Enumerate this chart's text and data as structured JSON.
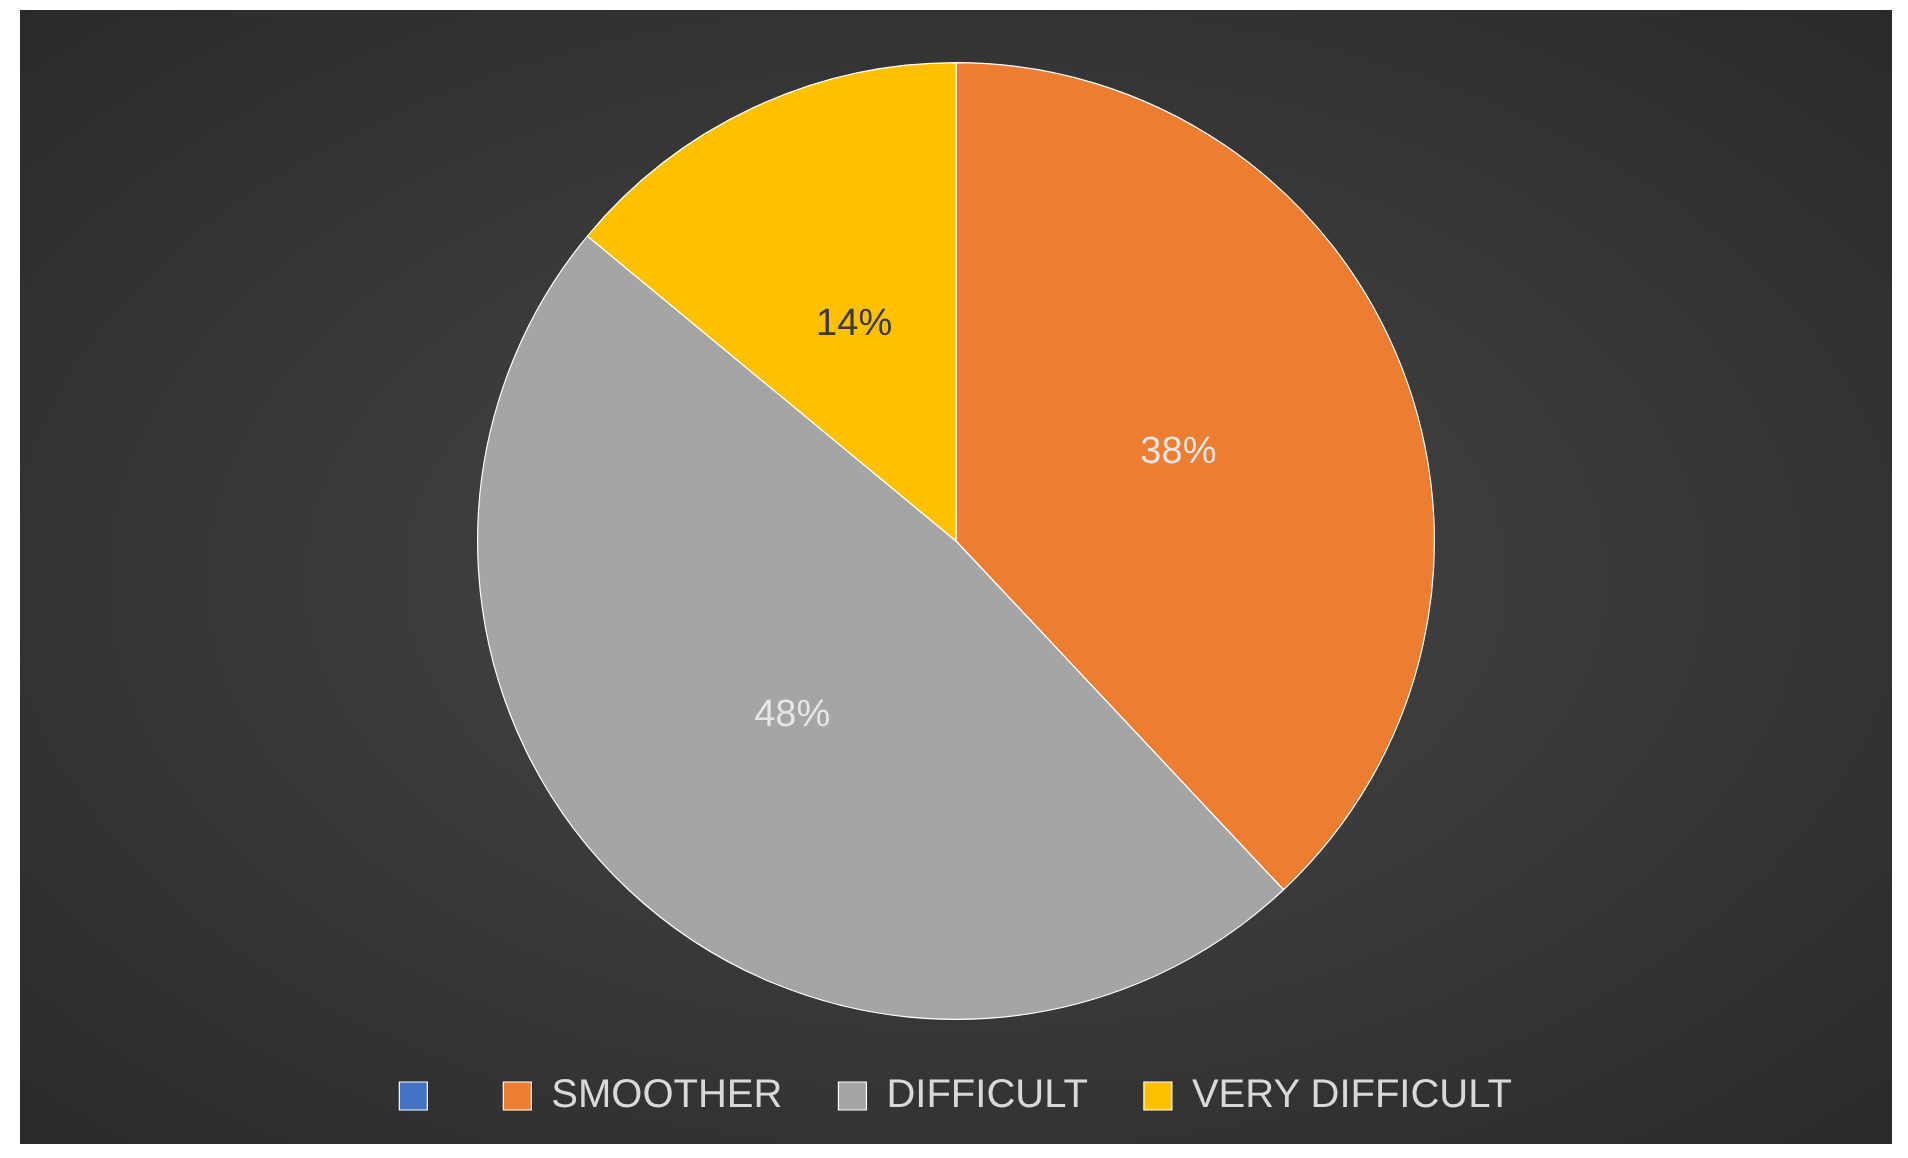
{
  "chart_data": {
    "type": "pie",
    "categories": [
      null,
      "SMOOTHER",
      "DIFFICULT",
      "VERY DIFFICULT"
    ],
    "values": [
      0,
      38,
      48,
      14
    ],
    "colors": [
      "#4472c4",
      "#ed7d31",
      "#a5a5a5",
      "#ffc000"
    ],
    "value_labels": [
      null,
      "38%",
      "48%",
      "14%"
    ],
    "legend": "bottom"
  }
}
